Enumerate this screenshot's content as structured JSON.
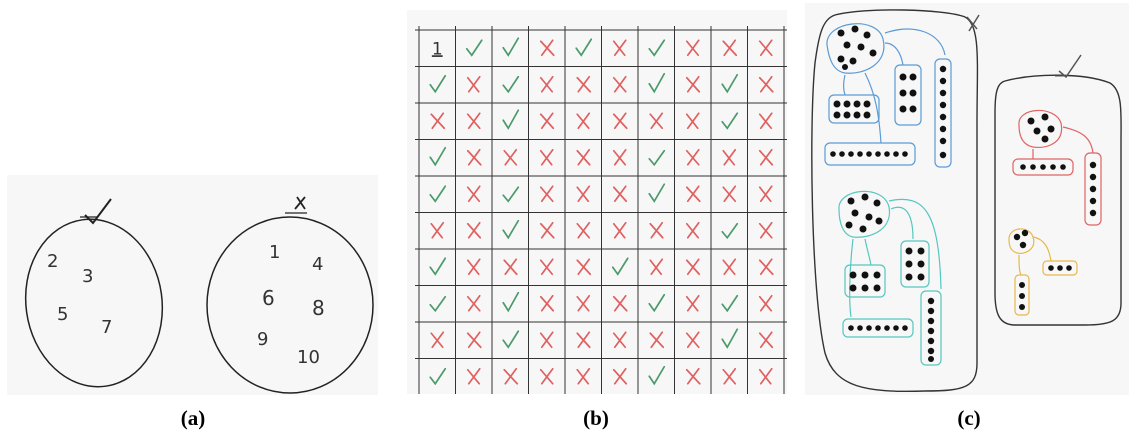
{
  "captions": {
    "a": "(a)",
    "b": "(b)",
    "c": "(c)"
  },
  "panel_a": {
    "left_set": {
      "mark": "✓",
      "numbers": [
        "2",
        "3",
        "5",
        "7"
      ]
    },
    "right_set": {
      "mark": "✗",
      "numbers": [
        "1",
        "4",
        "6",
        "8",
        "9",
        "10"
      ]
    }
  },
  "panel_b": {
    "corner_label": "1",
    "legend": {
      "c": "check",
      "x": "cross"
    },
    "colors": {
      "check": "#4a9a6a",
      "cross": "#e06060"
    },
    "rows": [
      "1ccxcxcxxx",
      "cxcxxxcxcx",
      "xxcxxxxxcx",
      "cxxxxxcxxx",
      "cxcxxxcxxx",
      "xxcxxxxxcx",
      "cxxxxcxxxx",
      "cxcxxxcxcx",
      "xxcxxxxxcx",
      "cxxxxxcxxx"
    ]
  },
  "panel_c": {
    "left_group": {
      "mark": "✗"
    },
    "right_group": {
      "mark": "✓"
    },
    "colors": {
      "blue": "#5b9bd5",
      "teal": "#55c7c0",
      "red": "#e06464",
      "yellow": "#e8b84a"
    }
  }
}
